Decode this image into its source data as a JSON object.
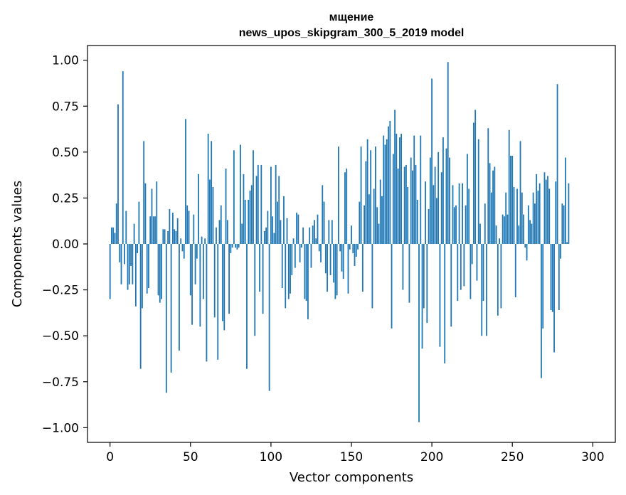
{
  "chart_data": {
    "type": "bar",
    "title": "мщение",
    "subtitle": "news_upos_skipgram_300_5_2019 model",
    "xlabel": "Vector components",
    "ylabel": "Components values",
    "xlim": [
      -14,
      314
    ],
    "ylim": [
      -1.08,
      1.08
    ],
    "xticks": [
      0,
      50,
      100,
      150,
      200,
      250,
      300
    ],
    "yticks": [
      -1.0,
      -0.75,
      -0.5,
      -0.25,
      0.0,
      0.25,
      0.5,
      0.75,
      1.0
    ],
    "ytick_labels": [
      "−1.00",
      "−0.75",
      "−0.50",
      "−0.25",
      "0.00",
      "0.25",
      "0.50",
      "0.75",
      "1.00"
    ],
    "bar_color": "#1f77b4",
    "values": [
      -0.3,
      0.09,
      0.09,
      0.06,
      0.22,
      0.76,
      -0.1,
      -0.22,
      0.94,
      -0.11,
      0.18,
      -0.25,
      -0.22,
      -0.12,
      -0.22,
      0.11,
      -0.34,
      -0.05,
      0.23,
      -0.68,
      -0.35,
      0.56,
      0.33,
      -0.27,
      -0.24,
      0.15,
      0.3,
      0.15,
      0.15,
      0.34,
      -0.28,
      -0.32,
      -0.3,
      0.08,
      0.08,
      -0.81,
      0.07,
      0.19,
      -0.7,
      0.17,
      0.08,
      0.07,
      0.14,
      -0.58,
      0.03,
      -0.04,
      -0.08,
      0.68,
      0.21,
      0.18,
      -0.28,
      -0.44,
      0.16,
      -0.22,
      -0.08,
      0.38,
      -0.45,
      0.04,
      -0.3,
      0.03,
      -0.64,
      0.6,
      0.35,
      0.56,
      0.31,
      -0.4,
      0.09,
      -0.63,
      0.13,
      0.21,
      -0.42,
      -0.47,
      0.41,
      0.13,
      -0.38,
      -0.05,
      -0.02,
      0.51,
      -0.02,
      -0.03,
      -0.02,
      0.54,
      0.11,
      0.38,
      0.24,
      -0.68,
      0.24,
      0.29,
      0.32,
      0.51,
      -0.5,
      0.37,
      0.43,
      -0.26,
      0.43,
      -0.38,
      0.07,
      0.09,
      0.18,
      -0.8,
      0.42,
      0.15,
      0.06,
      0.43,
      0.23,
      0.37,
      0.13,
      -0.24,
      0.26,
      -0.35,
      0.14,
      -0.3,
      -0.27,
      -0.17,
      0.03,
      -0.13,
      0.17,
      0.16,
      -0.1,
      -0.02,
      0.09,
      -0.3,
      -0.31,
      -0.41,
      0.09,
      -0.13,
      0.1,
      0.13,
      0.03,
      0.16,
      -0.04,
      -0.1,
      0.32,
      0.23,
      -0.16,
      -0.26,
      0.13,
      -0.17,
      0.13,
      -0.21,
      -0.3,
      -0.28,
      0.53,
      -0.04,
      -0.15,
      -0.19,
      0.39,
      0.41,
      -0.27,
      -0.03,
      0.1,
      -0.05,
      -0.12,
      -0.07,
      -0.03,
      0.23,
      0.53,
      -0.26,
      0.21,
      0.45,
      0.57,
      0.27,
      0.51,
      -0.35,
      0.3,
      0.53,
      0.2,
      0.11,
      0.35,
      0.26,
      0.59,
      0.54,
      0.57,
      0.64,
      0.67,
      -0.46,
      0.49,
      0.73,
      0.6,
      0.41,
      0.58,
      0.6,
      -0.25,
      0.42,
      0.43,
      0.31,
      -0.32,
      0.47,
      0.4,
      0.59,
      0.43,
      0.24,
      -0.97,
      0.59,
      -0.57,
      -0.35,
      0.34,
      -0.43,
      0.19,
      0.47,
      0.9,
      0.32,
      0.42,
      0.25,
      0.5,
      -0.56,
      0.39,
      0.58,
      -0.65,
      0.52,
      0.99,
      0.47,
      -0.45,
      0.32,
      0.2,
      0.21,
      -0.31,
      0.33,
      -0.25,
      0.33,
      -0.23,
      0.21,
      0.49,
      0.3,
      -0.3,
      -0.11,
      0.66,
      0.73,
      -0.2,
      0.57,
      0.11,
      -0.5,
      -0.31,
      0.22,
      -0.5,
      0.63,
      0.44,
      0.28,
      0.4,
      0.42,
      0.1,
      -0.39,
      0.03,
      -0.35,
      0.16,
      0.15,
      0.28,
      0.16,
      0.62,
      0.48,
      0.48,
      0.31,
      -0.29,
      0.3,
      0.1,
      0.56,
      0.28,
      0.16,
      -0.02,
      -0.09,
      0.21,
      0.13,
      0.11,
      0.28,
      0.22,
      0.38,
      0.29,
      0.33,
      -0.73,
      -0.46,
      0.39,
      0.35,
      0.37,
      0.3,
      -0.36,
      -0.37,
      -0.59,
      0.34,
      0.87,
      -0.36,
      -0.08,
      0.22,
      0.21,
      0.47,
      0.01,
      0.33
    ]
  }
}
